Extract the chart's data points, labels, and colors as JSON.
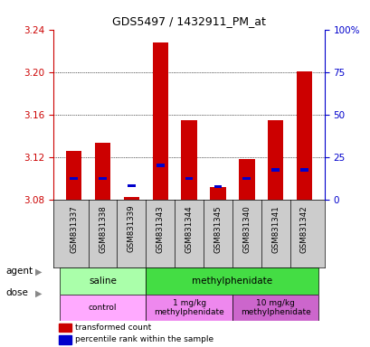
{
  "title": "GDS5497 / 1432911_PM_at",
  "samples": [
    "GSM831337",
    "GSM831338",
    "GSM831339",
    "GSM831343",
    "GSM831344",
    "GSM831345",
    "GSM831340",
    "GSM831341",
    "GSM831342"
  ],
  "red_values": [
    3.126,
    3.133,
    3.082,
    3.228,
    3.155,
    3.092,
    3.118,
    3.155,
    3.201
  ],
  "blue_values": [
    3.1,
    3.1,
    3.093,
    3.112,
    3.1,
    3.092,
    3.1,
    3.108,
    3.108
  ],
  "ylim_left": [
    3.08,
    3.24
  ],
  "yticks_left": [
    3.08,
    3.12,
    3.16,
    3.2,
    3.24
  ],
  "ylim_right": [
    0,
    100
  ],
  "yticks_right": [
    0,
    25,
    50,
    75,
    100
  ],
  "bar_bottom": 3.08,
  "agent_groups": [
    {
      "label": "saline",
      "start": 0,
      "end": 3,
      "color": "#aaffaa"
    },
    {
      "label": "methylphenidate",
      "start": 3,
      "end": 9,
      "color": "#44dd44"
    }
  ],
  "dose_groups": [
    {
      "label": "control",
      "start": 0,
      "end": 3,
      "color": "#ffaaff"
    },
    {
      "label": "1 mg/kg\nmethylphenidate",
      "start": 3,
      "end": 6,
      "color": "#ee88ee"
    },
    {
      "label": "10 mg/kg\nmethylphenidate",
      "start": 6,
      "end": 9,
      "color": "#cc66cc"
    }
  ],
  "red_color": "#cc0000",
  "blue_color": "#0000cc",
  "bar_width": 0.55,
  "tick_label_color_left": "#cc0000",
  "tick_label_color_right": "#0000cc",
  "agent_label": "agent",
  "dose_label": "dose",
  "legend_red": "transformed count",
  "legend_blue": "percentile rank within the sample",
  "xticklabel_bg": "#cccccc"
}
